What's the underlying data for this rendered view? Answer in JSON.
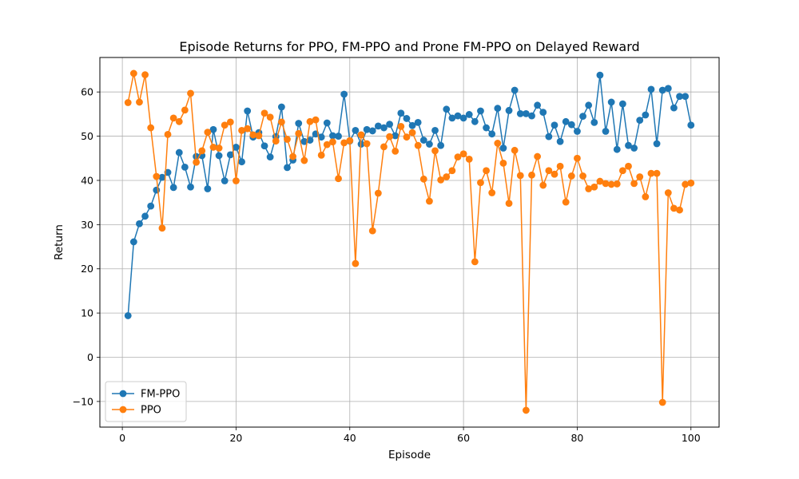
{
  "chart_data": {
    "type": "line",
    "title": "Episode Returns for PPO, FM-PPO and Prone FM-PPO on Delayed Reward",
    "xlabel": "Episode",
    "ylabel": "Return",
    "xlim": [
      -3.95,
      104.95
    ],
    "ylim": [
      -15.8,
      67.8
    ],
    "x_ticks": [
      0,
      20,
      40,
      60,
      80,
      100
    ],
    "y_ticks": [
      -10,
      0,
      10,
      20,
      30,
      40,
      50,
      60
    ],
    "grid": true,
    "legend_position": "lower-left",
    "x": [
      1,
      2,
      3,
      4,
      5,
      6,
      7,
      8,
      9,
      10,
      11,
      12,
      13,
      14,
      15,
      16,
      17,
      18,
      19,
      20,
      21,
      22,
      23,
      24,
      25,
      26,
      27,
      28,
      29,
      30,
      31,
      32,
      33,
      34,
      35,
      36,
      37,
      38,
      39,
      40,
      41,
      42,
      43,
      44,
      45,
      46,
      47,
      48,
      49,
      50,
      51,
      52,
      53,
      54,
      55,
      56,
      57,
      58,
      59,
      60,
      61,
      62,
      63,
      64,
      65,
      66,
      67,
      68,
      69,
      70,
      71,
      72,
      73,
      74,
      75,
      76,
      77,
      78,
      79,
      80,
      81,
      82,
      83,
      84,
      85,
      86,
      87,
      88,
      89,
      90,
      91,
      92,
      93,
      94,
      95,
      96,
      97,
      98,
      99,
      100
    ],
    "series": [
      {
        "name": "FM-PPO",
        "color": "#1f77b4",
        "values": [
          9.4,
          26.1,
          30.2,
          31.9,
          34.2,
          37.8,
          40.7,
          41.8,
          38.4,
          46.3,
          43.0,
          38.5,
          45.4,
          45.6,
          38.1,
          51.5,
          45.6,
          39.9,
          45.8,
          47.5,
          44.2,
          55.7,
          49.8,
          50.8,
          47.8,
          45.3,
          49.9,
          56.6,
          42.9,
          44.6,
          52.9,
          48.8,
          49.1,
          50.5,
          49.8,
          53.0,
          50.1,
          50.0,
          59.5,
          48.9,
          51.3,
          48.2,
          51.5,
          51.2,
          52.3,
          51.9,
          52.7,
          50.1,
          55.2,
          54.0,
          52.4,
          53.1,
          49.1,
          48.2,
          51.3,
          47.9,
          56.1,
          54.1,
          54.6,
          54.1,
          54.9,
          53.3,
          55.7,
          51.9,
          50.5,
          56.3,
          47.3,
          55.8,
          60.4,
          55.1,
          55.1,
          54.6,
          57.0,
          55.4,
          49.9,
          52.5,
          48.8,
          53.3,
          52.6,
          51.1,
          54.5,
          57.0,
          53.1,
          63.8,
          51.1,
          57.7,
          47.0,
          57.3,
          47.9,
          47.3,
          53.6,
          54.8,
          60.6,
          48.3,
          60.4,
          60.8,
          56.4,
          59.0,
          59.0,
          52.5
        ]
      },
      {
        "name": "PPO",
        "color": "#ff7f0e",
        "values": [
          57.6,
          64.2,
          57.7,
          63.9,
          51.9,
          40.9,
          29.2,
          50.4,
          54.1,
          53.3,
          55.9,
          59.7,
          44.1,
          46.7,
          50.9,
          47.5,
          47.3,
          52.5,
          53.2,
          39.9,
          51.3,
          51.7,
          50.3,
          50.1,
          55.2,
          54.3,
          48.9,
          53.2,
          49.3,
          45.4,
          50.6,
          44.5,
          53.3,
          53.7,
          45.7,
          48.1,
          48.7,
          40.4,
          48.5,
          49.0,
          21.2,
          50.3,
          48.3,
          28.6,
          37.1,
          47.6,
          49.9,
          46.6,
          52.2,
          49.8,
          50.8,
          47.9,
          40.3,
          35.3,
          46.7,
          40.1,
          40.8,
          42.2,
          45.3,
          46.0,
          44.8,
          21.6,
          39.5,
          42.2,
          37.2,
          48.4,
          43.9,
          34.8,
          46.8,
          41.1,
          -12.0,
          41.2,
          45.4,
          38.9,
          42.2,
          41.4,
          43.2,
          35.1,
          41.0,
          45.0,
          41.0,
          38.1,
          38.5,
          39.8,
          39.3,
          39.1,
          39.2,
          42.2,
          43.2,
          39.3,
          40.8,
          36.3,
          41.6,
          41.6,
          -10.2,
          37.2,
          33.7,
          33.3,
          39.1,
          39.4
        ]
      }
    ]
  }
}
